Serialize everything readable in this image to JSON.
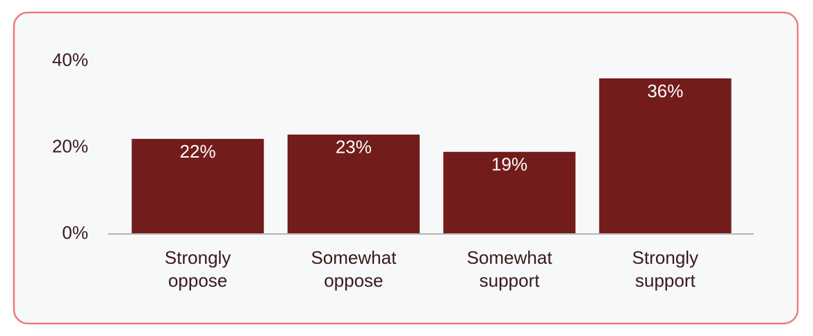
{
  "chart_data": {
    "type": "bar",
    "categories": [
      "Strongly oppose",
      "Somewhat oppose",
      "Somewhat support",
      "Strongly support"
    ],
    "values": [
      22,
      23,
      19,
      36
    ],
    "value_labels": [
      "22%",
      "23%",
      "19%",
      "36%"
    ],
    "color": "#721c1c",
    "ylim": [
      0,
      40
    ],
    "yticks": [
      {
        "value": 0,
        "label": "0%"
      },
      {
        "value": 20,
        "label": "20%"
      },
      {
        "value": 40,
        "label": "40%"
      }
    ],
    "grid": false
  }
}
